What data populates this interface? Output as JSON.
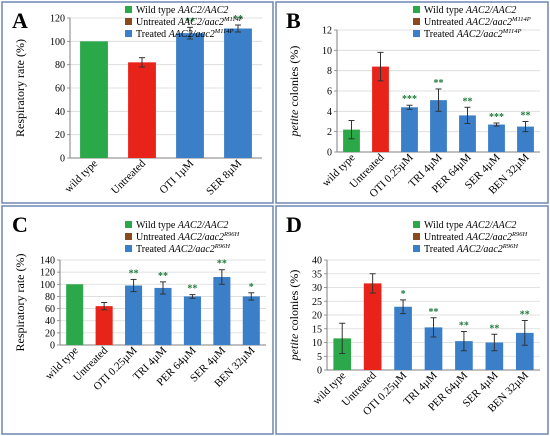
{
  "chart_data": [
    {
      "panel_label": "A",
      "type": "bar",
      "categories": [
        "wild type",
        "Untreated",
        "OTI 1µM",
        "SER 8µM"
      ],
      "values": [
        100,
        82,
        107,
        111
      ],
      "errors": [
        0,
        4,
        5,
        3
      ],
      "significance": [
        "",
        "",
        "**",
        "**"
      ],
      "bar_colors": [
        "#2aa84a",
        "#e8231a",
        "#3a7fc8",
        "#3a7fc8"
      ],
      "ylabel": "Respiratory rate (%)",
      "ylabel_italic_prefix": "",
      "ylim": [
        0,
        120
      ],
      "yticks": [
        0,
        20,
        40,
        60,
        80,
        100,
        120
      ],
      "legend": [
        {
          "color": "#2aa84a",
          "prefix": "Wild type ",
          "italic": "AAC2/AAC2",
          "sup": ""
        },
        {
          "color": "#8b4a1e",
          "prefix": "Untreated ",
          "italic": "AAC2/aac2",
          "sup": "M114P"
        },
        {
          "color": "#3a7fc8",
          "prefix": "Treated ",
          "italic": "AAC2/aac2",
          "sup": "M114P"
        }
      ]
    },
    {
      "panel_label": "B",
      "type": "bar",
      "categories": [
        "wild type",
        "Untreated",
        "OTI 0.25µM",
        "TRI 4µM",
        "PER 64µM",
        "SER 4µM",
        "BEN 32µM"
      ],
      "values": [
        2.2,
        8.4,
        4.4,
        5.1,
        3.6,
        2.7,
        2.5
      ],
      "errors": [
        0.9,
        1.4,
        0.2,
        1.1,
        0.8,
        0.15,
        0.5
      ],
      "significance": [
        "",
        "",
        "***",
        "**",
        "**",
        "***",
        "**"
      ],
      "bar_colors": [
        "#2aa84a",
        "#e8231a",
        "#3a7fc8",
        "#3a7fc8",
        "#3a7fc8",
        "#3a7fc8",
        "#3a7fc8"
      ],
      "ylabel": " colonies (%)",
      "ylabel_italic_prefix": "petite",
      "ylim": [
        0,
        12
      ],
      "yticks": [
        0,
        2,
        4,
        6,
        8,
        10,
        12
      ],
      "legend": [
        {
          "color": "#2aa84a",
          "prefix": "Wild type ",
          "italic": "AAC2/AAC2",
          "sup": ""
        },
        {
          "color": "#8b4a1e",
          "prefix": "Untreated ",
          "italic": "AAC2/aac2",
          "sup": "M114P"
        },
        {
          "color": "#3a7fc8",
          "prefix": "Treated ",
          "italic": "AAC2/aac2",
          "sup": "M114P"
        }
      ]
    },
    {
      "panel_label": "C",
      "type": "bar",
      "categories": [
        "wild type",
        "Untreated",
        "OTI 0.25µM",
        "TRI 4µM",
        "PER 64µM",
        "SER 4µM",
        "BEN 32µM"
      ],
      "values": [
        100,
        64,
        98,
        94,
        80,
        112,
        80
      ],
      "errors": [
        0,
        6,
        10,
        10,
        3,
        12,
        6
      ],
      "significance": [
        "",
        "",
        "**",
        "**",
        "**",
        "**",
        "*"
      ],
      "bar_colors": [
        "#2aa84a",
        "#e8231a",
        "#3a7fc8",
        "#3a7fc8",
        "#3a7fc8",
        "#3a7fc8",
        "#3a7fc8"
      ],
      "ylabel": "Respiratory rate (%)",
      "ylabel_italic_prefix": "",
      "ylim": [
        0,
        140
      ],
      "yticks": [
        0,
        20,
        40,
        60,
        80,
        100,
        120,
        140
      ],
      "legend": [
        {
          "color": "#2aa84a",
          "prefix": "Wild type ",
          "italic": "AAC2/AAC2",
          "sup": ""
        },
        {
          "color": "#8b4a1e",
          "prefix": "Untreated ",
          "italic": "AAC2/aac2",
          "sup": "R96H"
        },
        {
          "color": "#3a7fc8",
          "prefix": "Treated ",
          "italic": "AAC2/aac2",
          "sup": "R96H"
        }
      ]
    },
    {
      "panel_label": "D",
      "type": "bar",
      "categories": [
        "wild type",
        "Untreated",
        "OTI 0.25µM",
        "TRI 4µM",
        "PER 64µM",
        "SER 4µM",
        "BEN 32µM"
      ],
      "values": [
        11.5,
        31.5,
        23,
        15.5,
        10.5,
        10,
        13.5
      ],
      "errors": [
        5.5,
        3.5,
        2.5,
        3.5,
        3.5,
        3,
        4.5
      ],
      "significance": [
        "",
        "",
        "*",
        "**",
        "**",
        "**",
        "**"
      ],
      "bar_colors": [
        "#2aa84a",
        "#e8231a",
        "#3a7fc8",
        "#3a7fc8",
        "#3a7fc8",
        "#3a7fc8",
        "#3a7fc8"
      ],
      "ylabel": " colonies (%)",
      "ylabel_italic_prefix": "petite",
      "ylim": [
        0,
        40
      ],
      "yticks": [
        0,
        5,
        10,
        15,
        20,
        25,
        30,
        35,
        40
      ],
      "legend": [
        {
          "color": "#2aa84a",
          "prefix": "Wild type ",
          "italic": "AAC2/AAC2",
          "sup": ""
        },
        {
          "color": "#8b4a1e",
          "prefix": "Untreated ",
          "italic": "AAC2/aac2",
          "sup": "R96H"
        },
        {
          "color": "#3a7fc8",
          "prefix": "Treated ",
          "italic": "AAC2/aac2",
          "sup": "R96H"
        }
      ]
    }
  ],
  "colors": {
    "frame": "#6f87b4",
    "grid": "#d9d9d9",
    "axis": "#7f7f7f",
    "significance_text": "#1f7a3a",
    "error_bar": "#333333"
  }
}
